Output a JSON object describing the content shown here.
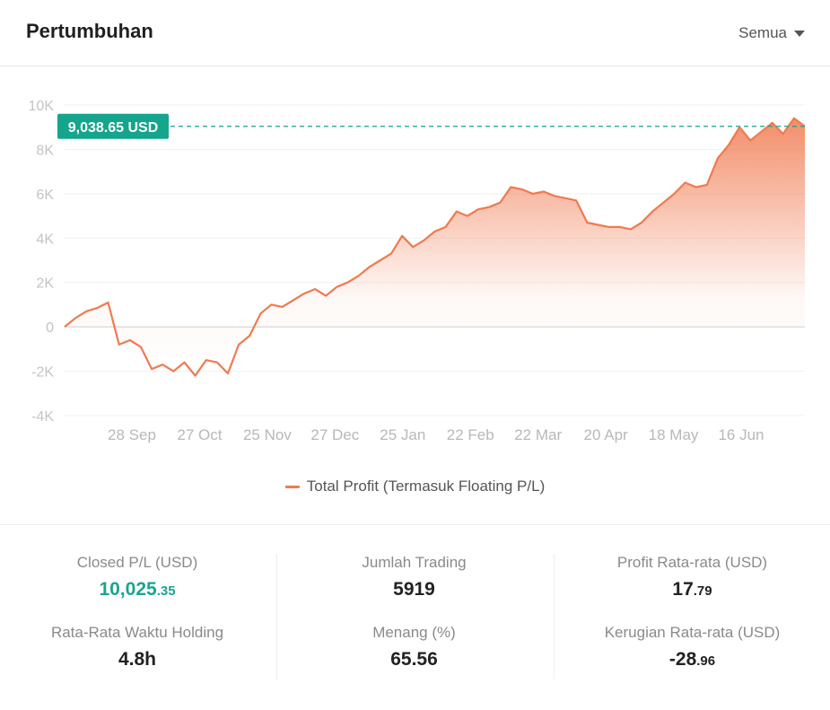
{
  "header": {
    "title": "Pertumbuhan",
    "period": "Semua"
  },
  "chart_data": {
    "type": "area",
    "y_ticks": [
      "10K",
      "8K",
      "6K",
      "4K",
      "2K",
      "0",
      "-2K",
      "-4K"
    ],
    "ylim": [
      -4000,
      10000
    ],
    "x_ticks": [
      "28 Sep",
      "27 Oct",
      "25 Nov",
      "27 Dec",
      "25 Jan",
      "22 Feb",
      "22 Mar",
      "20 Apr",
      "18 May",
      "16 Jun"
    ],
    "reference_line": {
      "value": 9038.65,
      "label": "9,038.65 USD"
    },
    "series": [
      {
        "name": "Total Profit (Termasuk Floating P/L)",
        "color": "#f07a50",
        "values": [
          0,
          400,
          700,
          850,
          1100,
          -800,
          -600,
          -900,
          -1900,
          -1700,
          -2000,
          -1600,
          -2200,
          -1500,
          -1600,
          -2100,
          -800,
          -400,
          600,
          1000,
          900,
          1200,
          1500,
          1700,
          1400,
          1800,
          2000,
          2300,
          2700,
          3000,
          3300,
          4100,
          3600,
          3900,
          4300,
          4500,
          5200,
          5000,
          5300,
          5400,
          5600,
          6300,
          6200,
          6000,
          6100,
          5900,
          5800,
          5700,
          4700,
          4600,
          4500,
          4500,
          4400,
          4700,
          5200,
          5600,
          6000,
          6500,
          6300,
          6400,
          7600,
          8200,
          9000,
          8400,
          8800,
          9200,
          8700,
          9400,
          9038.65
        ]
      }
    ],
    "legend": "bottom-center",
    "grid": true
  },
  "stats": {
    "closed_pl": {
      "label": "Closed P/L (USD)",
      "int": "10,025",
      "dec": ".35"
    },
    "jumlah_trading": {
      "label": "Jumlah Trading",
      "value": "5919"
    },
    "profit_avg": {
      "label": "Profit Rata-rata (USD)",
      "int": "17",
      "dec": ".79"
    },
    "holding": {
      "label": "Rata-Rata Waktu Holding",
      "value": "4.8h"
    },
    "menang": {
      "label": "Menang (%)",
      "value": "65.56"
    },
    "loss_avg": {
      "label": "Kerugian Rata-rata (USD)",
      "int": "-28",
      "dec": ".96"
    }
  },
  "colors": {
    "line": "#f07a50",
    "accent_green": "#1aa58f",
    "ref_label_bg": "#14a58c"
  }
}
